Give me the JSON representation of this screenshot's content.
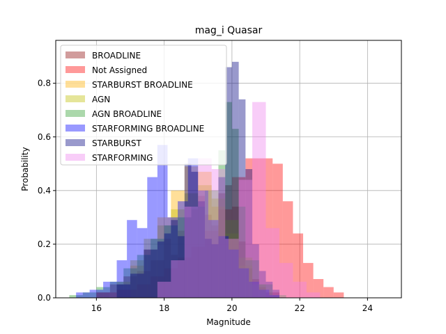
{
  "chart_data": {
    "type": "bar",
    "subtype": "overlaid-histogram",
    "title": "mag_i Quasar",
    "xlabel": "Magnitude",
    "ylabel": "Probability",
    "xlim": [
      14.8,
      25.0
    ],
    "ylim": [
      0,
      0.96
    ],
    "xticks": [
      16,
      18,
      20,
      22,
      24
    ],
    "yticks": [
      0.0,
      0.2,
      0.4,
      0.6,
      0.8
    ],
    "grid": true,
    "legend_position": "upper-left",
    "series": [
      {
        "name": "BROADLINE",
        "color": "#b35a5a",
        "opacity": 0.6,
        "bins": [
          [
            16.0,
            16.4,
            0.02
          ],
          [
            16.4,
            16.8,
            0.05
          ],
          [
            16.8,
            17.2,
            0.08
          ],
          [
            17.2,
            17.6,
            0.1
          ],
          [
            17.6,
            18.0,
            0.14
          ],
          [
            18.0,
            18.2,
            0.22
          ],
          [
            18.2,
            18.4,
            0.16
          ],
          [
            18.4,
            18.6,
            0.25
          ],
          [
            18.6,
            18.8,
            0.3
          ],
          [
            18.8,
            19.0,
            0.33
          ],
          [
            19.0,
            19.2,
            0.38
          ],
          [
            19.2,
            19.4,
            0.31
          ],
          [
            19.4,
            19.6,
            0.27
          ],
          [
            19.6,
            19.8,
            0.39
          ],
          [
            19.8,
            20.0,
            0.42
          ],
          [
            20.0,
            20.2,
            0.34
          ],
          [
            20.2,
            20.4,
            0.21
          ],
          [
            20.4,
            20.6,
            0.11
          ],
          [
            20.6,
            20.8,
            0.07
          ],
          [
            20.8,
            21.0,
            0.04
          ],
          [
            21.0,
            21.4,
            0.02
          ]
        ]
      },
      {
        "name": "Not Assigned",
        "color": "#ff0000",
        "opacity": 0.4,
        "bins": [
          [
            16.0,
            16.6,
            0.02
          ],
          [
            16.6,
            17.2,
            0.03
          ],
          [
            17.2,
            17.6,
            0.05
          ],
          [
            17.6,
            18.0,
            0.08
          ],
          [
            18.0,
            18.4,
            0.11
          ],
          [
            18.4,
            18.8,
            0.15
          ],
          [
            18.8,
            19.2,
            0.19
          ],
          [
            19.2,
            19.6,
            0.25
          ],
          [
            19.6,
            20.0,
            0.33
          ],
          [
            20.0,
            20.4,
            0.45
          ],
          [
            20.4,
            20.8,
            0.52
          ],
          [
            20.8,
            21.2,
            0.52
          ],
          [
            21.2,
            21.5,
            0.5
          ],
          [
            21.5,
            21.8,
            0.36
          ],
          [
            21.8,
            22.1,
            0.24
          ],
          [
            22.1,
            22.4,
            0.13
          ],
          [
            22.4,
            22.7,
            0.07
          ],
          [
            22.7,
            23.0,
            0.04
          ],
          [
            23.0,
            23.3,
            0.02
          ]
        ]
      },
      {
        "name": "STARBURST BROADLINE",
        "color": "#ffb000",
        "opacity": 0.4,
        "bins": [
          [
            17.0,
            17.4,
            0.12
          ],
          [
            17.4,
            17.8,
            0.18
          ],
          [
            17.8,
            18.2,
            0.3
          ],
          [
            18.2,
            18.6,
            0.4
          ],
          [
            18.6,
            19.0,
            0.49
          ],
          [
            19.0,
            19.4,
            0.47
          ],
          [
            19.4,
            19.8,
            0.34
          ],
          [
            19.8,
            20.2,
            0.24
          ],
          [
            20.2,
            20.6,
            0.12
          ]
        ]
      },
      {
        "name": "AGN",
        "color": "#bdbd00",
        "opacity": 0.4,
        "bins": [
          [
            16.6,
            17.0,
            0.06
          ],
          [
            17.0,
            17.4,
            0.14
          ],
          [
            17.4,
            17.8,
            0.22
          ],
          [
            17.8,
            18.2,
            0.27
          ],
          [
            18.2,
            18.6,
            0.33
          ],
          [
            18.6,
            19.0,
            0.39
          ],
          [
            19.0,
            19.4,
            0.42
          ],
          [
            19.4,
            19.8,
            0.37
          ],
          [
            19.8,
            20.2,
            0.29
          ],
          [
            20.2,
            20.6,
            0.15
          ],
          [
            20.6,
            21.0,
            0.05
          ]
        ]
      },
      {
        "name": "AGN BROADLINE",
        "color": "#2e9e2e",
        "opacity": 0.4,
        "bins": [
          [
            15.2,
            15.6,
            0.01
          ],
          [
            15.6,
            16.0,
            0.02
          ],
          [
            16.0,
            16.4,
            0.04
          ],
          [
            16.4,
            16.8,
            0.06
          ],
          [
            16.8,
            17.2,
            0.11
          ],
          [
            17.2,
            17.6,
            0.16
          ],
          [
            17.6,
            18.0,
            0.22
          ],
          [
            18.0,
            18.4,
            0.27
          ],
          [
            18.4,
            18.8,
            0.3
          ],
          [
            18.8,
            19.2,
            0.34
          ],
          [
            19.2,
            19.6,
            0.4
          ],
          [
            19.6,
            19.8,
            0.55
          ],
          [
            19.8,
            20.0,
            0.73
          ],
          [
            20.0,
            20.2,
            0.63
          ],
          [
            20.2,
            20.4,
            0.34
          ],
          [
            20.4,
            20.8,
            0.14
          ],
          [
            20.8,
            21.2,
            0.05
          ],
          [
            21.2,
            21.6,
            0.01
          ]
        ]
      },
      {
        "name": "STARFORMING BROADLINE",
        "color": "#0000ff",
        "opacity": 0.4,
        "bins": [
          [
            15.4,
            15.8,
            0.02
          ],
          [
            15.8,
            16.2,
            0.03
          ],
          [
            16.2,
            16.6,
            0.06
          ],
          [
            16.6,
            16.9,
            0.14
          ],
          [
            16.9,
            17.2,
            0.29
          ],
          [
            17.2,
            17.5,
            0.26
          ],
          [
            17.5,
            17.8,
            0.45
          ],
          [
            17.8,
            18.1,
            0.57
          ],
          [
            18.1,
            18.4,
            0.3
          ],
          [
            18.4,
            18.7,
            0.36
          ],
          [
            18.7,
            19.0,
            0.52
          ],
          [
            19.0,
            19.3,
            0.4
          ],
          [
            19.3,
            19.6,
            0.29
          ],
          [
            19.6,
            19.9,
            0.23
          ],
          [
            19.9,
            20.2,
            0.18
          ],
          [
            20.2,
            20.5,
            0.11
          ],
          [
            20.5,
            20.8,
            0.06
          ],
          [
            20.8,
            21.1,
            0.03
          ],
          [
            21.1,
            21.4,
            0.01
          ]
        ]
      },
      {
        "name": "STARBURST",
        "color": "#000080",
        "opacity": 0.4,
        "bins": [
          [
            16.6,
            17.0,
            0.05
          ],
          [
            17.0,
            17.4,
            0.09
          ],
          [
            17.4,
            17.8,
            0.18
          ],
          [
            17.8,
            18.0,
            0.21
          ],
          [
            18.0,
            18.2,
            0.24
          ],
          [
            18.2,
            18.4,
            0.29
          ],
          [
            18.4,
            18.6,
            0.23
          ],
          [
            18.6,
            18.8,
            0.5
          ],
          [
            18.8,
            19.0,
            0.47
          ],
          [
            19.0,
            19.2,
            0.36
          ],
          [
            19.2,
            19.4,
            0.22
          ],
          [
            19.4,
            19.6,
            0.2
          ],
          [
            19.6,
            19.8,
            0.45
          ],
          [
            19.8,
            20.0,
            0.86
          ],
          [
            20.0,
            20.2,
            0.88
          ],
          [
            20.2,
            20.4,
            0.74
          ],
          [
            20.4,
            20.6,
            0.48
          ],
          [
            20.6,
            20.8,
            0.2
          ],
          [
            20.8,
            21.0,
            0.1
          ],
          [
            21.0,
            21.2,
            0.06
          ],
          [
            21.2,
            21.4,
            0.03
          ]
        ]
      },
      {
        "name": "STARFORMING",
        "color": "#ee82ee",
        "opacity": 0.4,
        "bins": [
          [
            17.8,
            18.2,
            0.06
          ],
          [
            18.2,
            18.6,
            0.14
          ],
          [
            18.6,
            19.0,
            0.34
          ],
          [
            19.0,
            19.4,
            0.52
          ],
          [
            19.4,
            19.8,
            0.48
          ],
          [
            19.8,
            20.2,
            0.22
          ],
          [
            20.2,
            20.6,
            0.44
          ],
          [
            20.6,
            21.0,
            0.73
          ],
          [
            21.0,
            21.4,
            0.26
          ],
          [
            21.4,
            21.8,
            0.13
          ],
          [
            21.8,
            22.2,
            0.06
          ],
          [
            22.2,
            22.6,
            0.02
          ]
        ]
      }
    ]
  }
}
